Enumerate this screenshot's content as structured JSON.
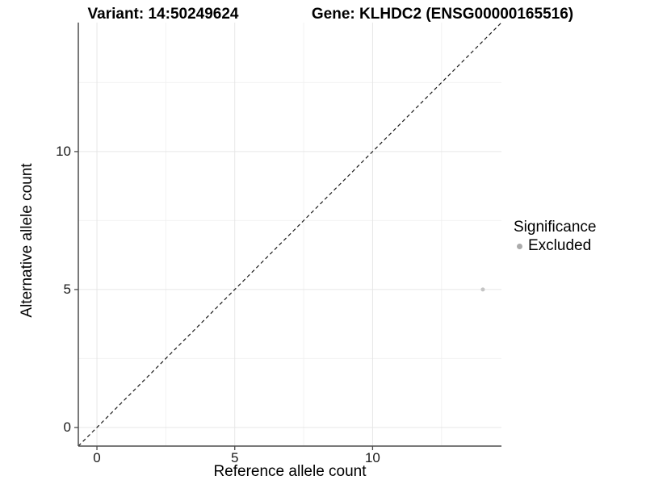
{
  "chart_data": {
    "type": "scatter",
    "titles": [
      "Variant: 14:50249624",
      "Gene: KLHDC2 (ENSG00000165516)"
    ],
    "xlabel": "Reference allele count",
    "ylabel": "Alternative allele count",
    "xlim": [
      -0.675,
      14.675
    ],
    "ylim": [
      -0.675,
      14.675
    ],
    "x_ticks": [
      0,
      5,
      10
    ],
    "y_ticks": [
      0,
      5,
      10
    ],
    "grid": "major+minor",
    "legend_position": "right",
    "reference_line": {
      "type": "identity",
      "slope": 1,
      "intercept": 0,
      "style": "dashed",
      "color": "#1a1a1a"
    },
    "series": [
      {
        "name": "Excluded",
        "color": "#c4c4c4",
        "points": [
          [
            14,
            5
          ]
        ]
      }
    ],
    "legend": {
      "title": "Significance",
      "items": [
        {
          "label": "Excluded",
          "color": "#ababab",
          "shape": "circle"
        }
      ]
    },
    "colors": {
      "grid_major": "#e6e6e6",
      "grid_minor": "#f2f2f2",
      "axis_line": "#4d4d4d",
      "background": "#ffffff"
    }
  }
}
